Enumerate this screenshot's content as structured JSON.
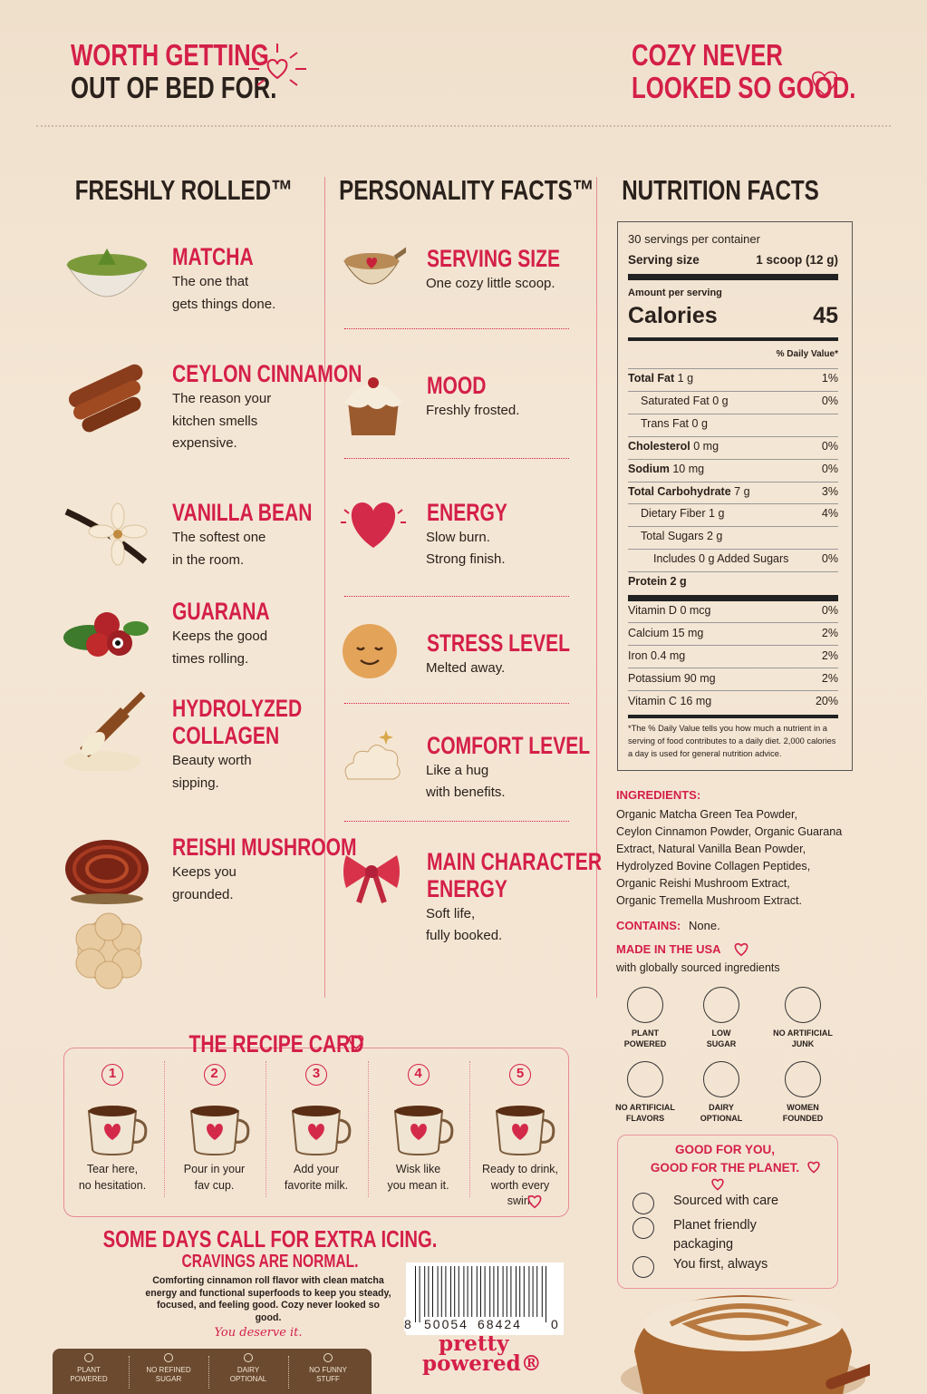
{
  "header": {
    "left": [
      "WORTH GETTING",
      "OUT OF BED FOR."
    ],
    "right": [
      "COZY NEVER",
      "LOOKED SO GOOD."
    ]
  },
  "freshly_rolled": {
    "title": "FRESHLY ROLLED™",
    "items": [
      {
        "name": [
          "MATCHA"
        ],
        "text": [
          "The one that",
          "gets things done."
        ]
      },
      {
        "name": [
          "CEYLON CINNAMON"
        ],
        "text": [
          "The reason your",
          "kitchen smells",
          "expensive."
        ]
      },
      {
        "name": [
          "VANILLA BEAN"
        ],
        "text": [
          "The softest one",
          "in the room."
        ]
      },
      {
        "name": [
          "GUARANA"
        ],
        "text": [
          "Keeps the good",
          "times rolling."
        ]
      },
      {
        "name": [
          "HYDROLYZED",
          "COLLAGEN"
        ],
        "text": [
          "Beauty worth",
          "sipping."
        ]
      },
      {
        "name": [
          "REISHI MUSHROOM"
        ],
        "text": [
          "Keeps you",
          "grounded."
        ]
      }
    ]
  },
  "personality_facts": {
    "title": "PERSONALITY FACTS™",
    "items": [
      {
        "name": [
          "SERVING SIZE"
        ],
        "text": [
          "One cozy little scoop."
        ]
      },
      {
        "name": [
          "MOOD"
        ],
        "text": [
          "Freshly frosted."
        ]
      },
      {
        "name": [
          "ENERGY"
        ],
        "text": [
          "Slow burn.",
          "Strong finish."
        ]
      },
      {
        "name": [
          "STRESS LEVEL"
        ],
        "text": [
          "Melted away."
        ]
      },
      {
        "name": [
          "COMFORT LEVEL"
        ],
        "text": [
          "Like a hug",
          "with benefits."
        ]
      },
      {
        "name": [
          "MAIN CHARACTER",
          "ENERGY"
        ],
        "text": [
          "Soft life,",
          "fully booked."
        ]
      }
    ]
  },
  "nutrition_facts": {
    "title": "NUTRITION FACTS",
    "servings": "30 servings per container",
    "serving_size_label": "Serving size",
    "serving_size": "1 scoop (12 g)",
    "amount_per_serving": "Amount per serving",
    "calories_label": "Calories",
    "calories": 45,
    "daily_value_header": "% Daily Value*",
    "rows": [
      {
        "label": "Total Fat",
        "amount": "1 g",
        "dv": "1%",
        "level": 0
      },
      {
        "label": "Saturated Fat",
        "amount": "0 g",
        "dv": "0%",
        "level": 1
      },
      {
        "label": "Trans Fat",
        "amount": "0 g",
        "level": 1
      },
      {
        "label": "Cholesterol",
        "amount": "0 mg",
        "dv": "0%",
        "level": 0
      },
      {
        "label": "Sodium",
        "amount": "10 mg",
        "dv": "0%",
        "level": 0
      },
      {
        "label": "Total Carbohydrate",
        "amount": "7 g",
        "dv": "3%",
        "level": 0
      },
      {
        "label": "Dietary Fiber",
        "amount": "1 g",
        "dv": "4%",
        "level": 1
      },
      {
        "label": "Total Sugars",
        "amount": "2 g",
        "level": 1
      },
      {
        "label": "Includes 0 g Added Sugars",
        "dv": "0%",
        "level": 2
      },
      {
        "label": "Protein",
        "amount": "2 g",
        "level": 0
      }
    ],
    "vitamins": [
      {
        "label": "Vitamin D",
        "amount": "0 mcg",
        "dv": "0%"
      },
      {
        "label": "Calcium",
        "amount": "15 mg",
        "dv": "2%"
      },
      {
        "label": "Iron",
        "amount": "0.4 mg",
        "dv": "2%"
      },
      {
        "label": "Potassium",
        "amount": "90 mg",
        "dv": "2%"
      },
      {
        "label": "Vitamin C",
        "amount": "16 mg",
        "dv": "20%"
      }
    ],
    "footnote": "*The % Daily Value tells you how much a nutrient in a serving of food contributes to a daily diet. 2,000 calories a day is used for general nutrition advice."
  },
  "ingredients": {
    "label": "INGREDIENTS:",
    "lines": [
      "Organic Matcha Green Tea Powder,",
      "Ceylon Cinnamon Powder, Organic Guarana",
      "Extract, Natural Vanilla Bean Powder,",
      "Hydrolyzed Bovine Collagen Peptides,",
      "Organic Reishi Mushroom Extract,",
      "Organic Tremella Mushroom Extract."
    ]
  },
  "contains": {
    "label": "CONTAINS:",
    "value": "None."
  },
  "origin": {
    "label": "MADE IN THE USA",
    "note": "with globally sourced ingredients"
  },
  "claims": [
    [
      "PLANT",
      "POWERED"
    ],
    [
      "LOW",
      "SUGAR"
    ],
    [
      "NO ARTIFICIAL",
      "JUNK"
    ],
    [
      "NO ARTIFICIAL",
      "FLAVORS"
    ],
    [
      "DAIRY",
      "OPTIONAL"
    ],
    [
      "WOMEN",
      "FOUNDED"
    ]
  ],
  "planet": {
    "title": [
      "GOOD FOR YOU,",
      "GOOD FOR THE PLANET."
    ],
    "items": [
      [
        "Sourced with care"
      ],
      [
        "Planet friendly",
        "packaging"
      ],
      [
        "You first, always"
      ]
    ]
  },
  "recipe_card": {
    "title": "THE RECIPE CARD",
    "steps": [
      {
        "number": 1,
        "text": [
          "Tear here,",
          "no hesitation."
        ]
      },
      {
        "number": 2,
        "text": [
          "Pour in your",
          "fav cup."
        ]
      },
      {
        "number": 3,
        "text": [
          "Add your",
          "favorite milk."
        ]
      },
      {
        "number": 4,
        "text": [
          "Wisk like",
          "you mean it."
        ]
      },
      {
        "number": 5,
        "text": [
          "Ready to drink,",
          "worth every",
          "swirl."
        ]
      }
    ]
  },
  "tagline": {
    "headline": "SOME DAYS CALL FOR EXTRA ICING.",
    "subhead": "CRAVINGS ARE NORMAL.",
    "body": "Comforting cinnamon roll flavor with clean matcha energy and functional superfoods to keep you steady, focused, and feeling good. Cozy never looked so good.",
    "signoff": "You deserve it."
  },
  "badges": [
    [
      "PLANT",
      "POWERED"
    ],
    [
      "NO REFINED",
      "SUGAR"
    ],
    [
      "DAIRY",
      "OPTIONAL"
    ],
    [
      "NO FUNNY",
      "STUFF"
    ]
  ],
  "barcode": {
    "digits": [
      "8",
      "50054",
      "68424",
      "0"
    ]
  },
  "brand": [
    "pretty",
    "powered®"
  ]
}
